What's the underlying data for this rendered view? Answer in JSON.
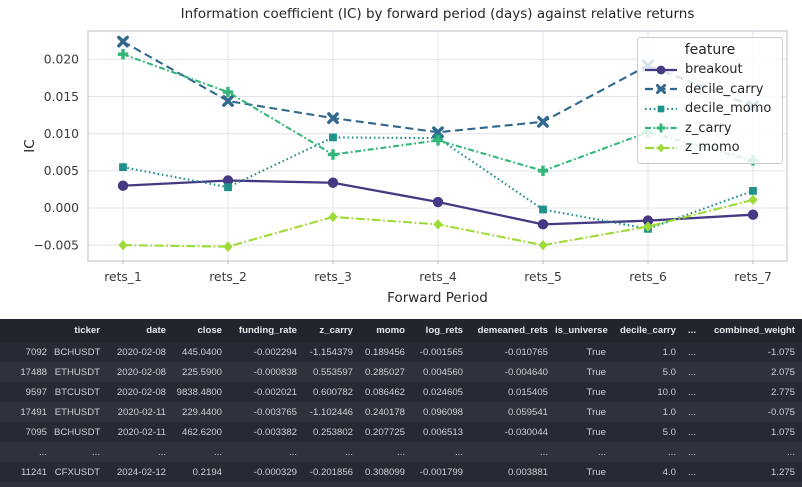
{
  "chart": {
    "title": "Information coefficient (IC) by forward period (days) against relative returns",
    "xlabel": "Forward Period",
    "ylabel": "IC",
    "legend_title": "feature"
  },
  "chart_data": {
    "type": "line",
    "title": "Information coefficient (IC) by forward period (days) against relative returns",
    "xlabel": "Forward Period",
    "ylabel": "IC",
    "legend_title": "feature",
    "legend_position": "upper right",
    "grid": true,
    "ylim": [
      -0.0072,
      0.0238
    ],
    "categories": [
      "rets_1",
      "rets_2",
      "rets_3",
      "rets_4",
      "rets_5",
      "rets_6",
      "rets_7"
    ],
    "yticks": [
      -0.005,
      0.0,
      0.005,
      0.01,
      0.015,
      0.02
    ],
    "ytick_labels": [
      "−0.005",
      "0.000",
      "0.005",
      "0.010",
      "0.015",
      "0.020"
    ],
    "series": [
      {
        "name": "breakout",
        "color": "#443983",
        "marker": "circle",
        "dash": "",
        "values": [
          0.003,
          0.0037,
          0.0034,
          0.0008,
          -0.0022,
          -0.0017,
          -0.0009
        ]
      },
      {
        "name": "decile_carry",
        "color": "#31688e",
        "marker": "x",
        "dash": "8,4.5",
        "values": [
          0.0224,
          0.0144,
          0.0121,
          0.0102,
          0.0116,
          0.0192,
          0.0137
        ]
      },
      {
        "name": "decile_momo",
        "color": "#21918c",
        "marker": "square",
        "dash": "1.6,2.8",
        "values": [
          0.0055,
          0.0028,
          0.0095,
          0.0094,
          -0.0002,
          -0.0028,
          0.0023
        ]
      },
      {
        "name": "z_carry",
        "color": "#35b779",
        "marker": "plus",
        "dash": "6,2.5,1.8,2.5",
        "values": [
          0.0207,
          0.0156,
          0.0072,
          0.0091,
          0.005,
          0.0102,
          0.0064
        ]
      },
      {
        "name": "z_momo",
        "color": "#a0da39",
        "marker": "diamond",
        "dash": "9,2.5,1.8,2.5",
        "values": [
          -0.005,
          -0.0052,
          -0.0012,
          -0.0022,
          -0.005,
          -0.0025,
          0.0011
        ]
      }
    ]
  },
  "table": {
    "columns": [
      "",
      "ticker",
      "date",
      "close",
      "funding_rate",
      "z_carry",
      "momo",
      "log_rets",
      "demeaned_rets",
      "is_universe",
      "decile_carry",
      "...",
      "combined_weight"
    ],
    "rows": [
      [
        "7092",
        "BCHUSDT",
        "2020-02-08",
        "445.0400",
        "-0.002294",
        "-1.154379",
        "0.189456",
        "-0.001565",
        "-0.010765",
        "True",
        "1.0",
        "...",
        "-1.075"
      ],
      [
        "17488",
        "ETHUSDT",
        "2020-02-08",
        "225.5900",
        "-0.000838",
        "0.553597",
        "0.285027",
        "0.004560",
        "-0.004640",
        "True",
        "5.0",
        "...",
        "2.075"
      ],
      [
        "9597",
        "BTCUSDT",
        "2020-02-08",
        "9838.4800",
        "-0.002021",
        "0.600782",
        "0.086462",
        "0.024605",
        "0.015405",
        "True",
        "10.0",
        "...",
        "2.775"
      ],
      [
        "17491",
        "ETHUSDT",
        "2020-02-11",
        "229.4400",
        "-0.003765",
        "-1.102446",
        "0.240178",
        "0.096098",
        "0.059541",
        "True",
        "1.0",
        "...",
        "-0.075"
      ],
      [
        "7095",
        "BCHUSDT",
        "2020-02-11",
        "462.6200",
        "-0.003382",
        "0.253802",
        "0.207725",
        "0.006513",
        "-0.030044",
        "True",
        "5.0",
        "...",
        "1.075"
      ],
      [
        "...",
        "...",
        "...",
        "...",
        "...",
        "...",
        "...",
        "...",
        "...",
        "...",
        "...",
        "...",
        "..."
      ],
      [
        "11241",
        "CFXUSDT",
        "2024-02-12",
        "0.2194",
        "-0.000329",
        "-0.201856",
        "0.308099",
        "-0.001799",
        "0.003881",
        "True",
        "4.0",
        "...",
        "1.275"
      ]
    ],
    "theme": {
      "header_bg": "#21252e",
      "row_dark": "#262a34",
      "row_light": "#2d323d",
      "text": "#ccd0d6"
    }
  }
}
